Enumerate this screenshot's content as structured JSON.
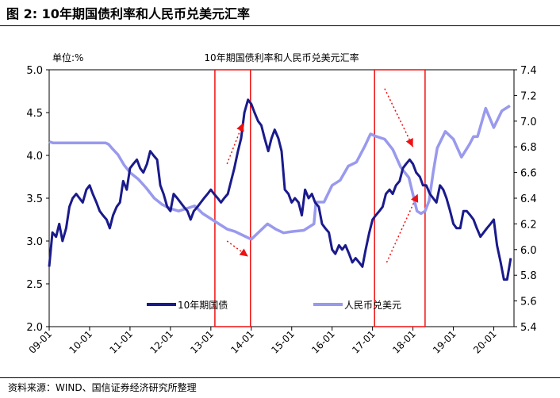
{
  "figure_title": "图 2: 10年期国债利率和人民币兑美元汇率",
  "source_note": "资料来源：WIND、国信证券经济研究所整理",
  "chart_data": {
    "type": "line",
    "title": "10年期国债利率和人民币兑美元汇率",
    "unit_label": "单位:%",
    "x_tick_labels": [
      "09-01",
      "10-01",
      "11-01",
      "12-01",
      "13-01",
      "14-01",
      "15-01",
      "16-01",
      "17-01",
      "18-01",
      "19-01",
      "20-01"
    ],
    "x_range": [
      "2009-01",
      "2020-06"
    ],
    "y_left": {
      "min": 2.0,
      "max": 5.0,
      "ticks": [
        "2.0",
        "2.5",
        "3.0",
        "3.5",
        "4.0",
        "4.5",
        "5.0"
      ]
    },
    "y_right": {
      "min": 5.4,
      "max": 7.4,
      "ticks": [
        "5.4",
        "5.6",
        "5.8",
        "6.0",
        "6.2",
        "6.4",
        "6.6",
        "6.8",
        "7.0",
        "7.2",
        "7.4"
      ]
    },
    "grid": false,
    "legend_position": "bottom-inside",
    "colors": {
      "bond": "#1a1a8c",
      "fx": "#9999ee",
      "highlight": "#ee1111"
    },
    "series": [
      {
        "name": "10年期国债",
        "axis": "left",
        "x": [
          2009.0,
          2009.08,
          2009.17,
          2009.25,
          2009.33,
          2009.42,
          2009.5,
          2009.58,
          2009.67,
          2009.75,
          2009.83,
          2009.92,
          2010.0,
          2010.08,
          2010.17,
          2010.25,
          2010.33,
          2010.42,
          2010.5,
          2010.58,
          2010.67,
          2010.75,
          2010.83,
          2010.92,
          2011.0,
          2011.08,
          2011.17,
          2011.25,
          2011.33,
          2011.42,
          2011.5,
          2011.58,
          2011.67,
          2011.75,
          2011.83,
          2011.92,
          2012.0,
          2012.08,
          2012.17,
          2012.25,
          2012.33,
          2012.42,
          2012.5,
          2012.58,
          2012.67,
          2012.75,
          2012.83,
          2012.92,
          2013.0,
          2013.08,
          2013.17,
          2013.25,
          2013.33,
          2013.42,
          2013.5,
          2013.58,
          2013.67,
          2013.75,
          2013.83,
          2013.92,
          2014.0,
          2014.08,
          2014.17,
          2014.25,
          2014.33,
          2014.42,
          2014.5,
          2014.58,
          2014.67,
          2014.75,
          2014.83,
          2014.92,
          2015.0,
          2015.08,
          2015.17,
          2015.25,
          2015.33,
          2015.42,
          2015.5,
          2015.58,
          2015.67,
          2015.75,
          2015.83,
          2015.92,
          2016.0,
          2016.08,
          2016.17,
          2016.25,
          2016.33,
          2016.42,
          2016.5,
          2016.58,
          2016.67,
          2016.75,
          2016.83,
          2016.92,
          2017.0,
          2017.08,
          2017.17,
          2017.25,
          2017.33,
          2017.42,
          2017.5,
          2017.58,
          2017.67,
          2017.75,
          2017.83,
          2017.92,
          2018.0,
          2018.08,
          2018.17,
          2018.25,
          2018.33,
          2018.42,
          2018.5,
          2018.58,
          2018.67,
          2018.75,
          2018.83,
          2018.92,
          2019.0,
          2019.08,
          2019.17,
          2019.25,
          2019.33,
          2019.42,
          2019.5,
          2019.58,
          2019.67,
          2019.75,
          2019.83,
          2019.92,
          2020.0,
          2020.08,
          2020.17,
          2020.25,
          2020.33,
          2020.42
        ],
        "values": [
          2.7,
          3.1,
          3.05,
          3.2,
          3.0,
          3.15,
          3.4,
          3.5,
          3.55,
          3.5,
          3.45,
          3.6,
          3.65,
          3.55,
          3.45,
          3.35,
          3.3,
          3.25,
          3.15,
          3.3,
          3.4,
          3.45,
          3.7,
          3.6,
          3.85,
          3.9,
          3.95,
          3.85,
          3.8,
          3.9,
          4.05,
          4.0,
          3.95,
          3.65,
          3.55,
          3.4,
          3.35,
          3.55,
          3.5,
          3.45,
          3.4,
          3.35,
          3.25,
          3.35,
          3.4,
          3.45,
          3.5,
          3.55,
          3.6,
          3.55,
          3.5,
          3.45,
          3.5,
          3.55,
          3.7,
          3.85,
          4.05,
          4.2,
          4.5,
          4.65,
          4.6,
          4.5,
          4.4,
          4.35,
          4.2,
          4.05,
          4.2,
          4.3,
          4.2,
          4.05,
          3.6,
          3.55,
          3.45,
          3.5,
          3.45,
          3.3,
          3.6,
          3.5,
          3.55,
          3.45,
          3.4,
          3.2,
          3.15,
          3.1,
          2.9,
          2.85,
          2.95,
          2.9,
          2.95,
          2.85,
          2.75,
          2.8,
          2.75,
          2.7,
          2.9,
          3.1,
          3.25,
          3.3,
          3.35,
          3.4,
          3.55,
          3.6,
          3.55,
          3.65,
          3.7,
          3.85,
          3.9,
          3.95,
          3.9,
          3.8,
          3.75,
          3.65,
          3.65,
          3.55,
          3.5,
          3.45,
          3.65,
          3.6,
          3.5,
          3.35,
          3.2,
          3.15,
          3.15,
          3.35,
          3.35,
          3.3,
          3.25,
          3.15,
          3.05,
          3.1,
          3.15,
          3.2,
          3.25,
          2.95,
          2.75,
          2.55,
          2.55,
          2.8
        ]
      },
      {
        "name": "人民币兑美元",
        "axis": "right",
        "x": [
          2009.0,
          2009.1,
          2009.2,
          2009.3,
          2009.4,
          2009.5,
          2009.6,
          2009.7,
          2009.8,
          2009.9,
          2010.0,
          2010.1,
          2010.2,
          2010.3,
          2010.4,
          2010.47,
          2010.55,
          2010.7,
          2010.85,
          2011.0,
          2011.2,
          2011.4,
          2011.6,
          2011.8,
          2012.0,
          2012.2,
          2012.4,
          2012.6,
          2012.8,
          2013.0,
          2013.2,
          2013.4,
          2013.6,
          2013.8,
          2014.0,
          2014.2,
          2014.4,
          2014.6,
          2014.8,
          2015.0,
          2015.3,
          2015.55,
          2015.6,
          2015.8,
          2016.0,
          2016.2,
          2016.4,
          2016.6,
          2016.8,
          2016.95,
          2017.1,
          2017.3,
          2017.5,
          2017.7,
          2017.9,
          2018.1,
          2018.2,
          2018.3,
          2018.4,
          2018.5,
          2018.6,
          2018.8,
          2019.0,
          2019.2,
          2019.4,
          2019.5,
          2019.6,
          2019.8,
          2020.0,
          2020.2,
          2020.4
        ],
        "values": [
          6.84,
          6.83,
          6.83,
          6.83,
          6.83,
          6.83,
          6.83,
          6.83,
          6.83,
          6.83,
          6.83,
          6.83,
          6.83,
          6.83,
          6.83,
          6.82,
          6.79,
          6.74,
          6.66,
          6.6,
          6.55,
          6.48,
          6.4,
          6.35,
          6.32,
          6.3,
          6.32,
          6.34,
          6.28,
          6.24,
          6.2,
          6.16,
          6.14,
          6.11,
          6.08,
          6.14,
          6.2,
          6.16,
          6.13,
          6.14,
          6.15,
          6.2,
          6.37,
          6.37,
          6.5,
          6.54,
          6.65,
          6.68,
          6.8,
          6.9,
          6.88,
          6.86,
          6.78,
          6.64,
          6.56,
          6.3,
          6.28,
          6.3,
          6.38,
          6.6,
          6.79,
          6.92,
          6.86,
          6.72,
          6.82,
          6.88,
          6.88,
          7.1,
          6.95,
          7.08,
          7.12
        ]
      }
    ],
    "highlight_boxes": [
      {
        "x_start": 2013.1,
        "x_end": 2013.98,
        "y_min": 2.0,
        "y_max": 5.0
      },
      {
        "x_start": 2017.05,
        "x_end": 2018.3,
        "y_min": 2.0,
        "y_max": 5.0
      }
    ],
    "annotation_arrows": [
      {
        "from": [
          2013.4,
          3.9
        ],
        "to": [
          2013.8,
          4.38
        ],
        "axis": "left",
        "direction": "up"
      },
      {
        "from": [
          2013.4,
          3.0
        ],
        "to": [
          2013.92,
          2.82
        ],
        "axis": "left",
        "direction": "down"
      },
      {
        "from": [
          2017.3,
          4.78
        ],
        "to": [
          2018.0,
          4.1
        ],
        "axis": "left",
        "direction": "down"
      },
      {
        "from": [
          2017.35,
          2.75
        ],
        "to": [
          2018.12,
          3.55
        ],
        "axis": "left",
        "direction": "up"
      }
    ]
  }
}
